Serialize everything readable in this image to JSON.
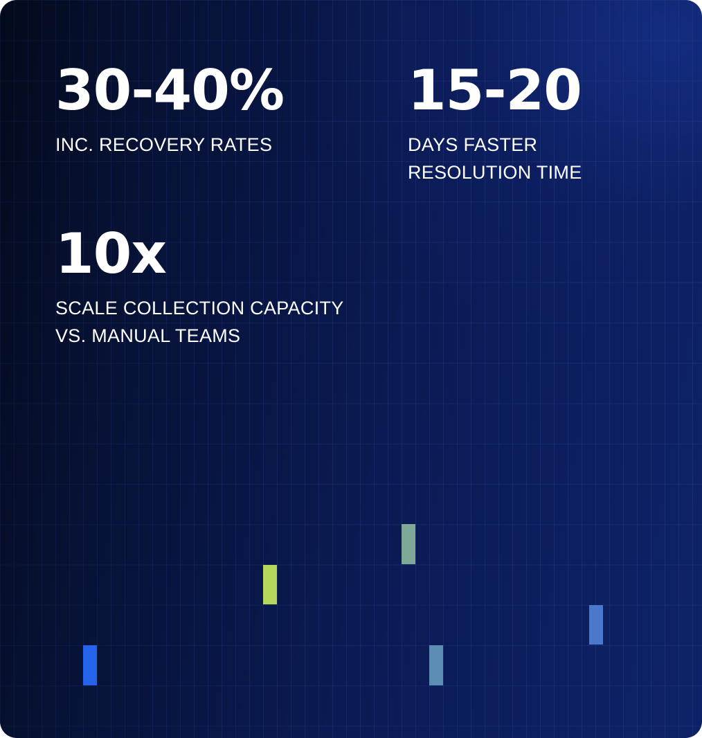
{
  "stats": [
    {
      "value": "30-40%",
      "label_lines": [
        "INC. RECOVERY RATES"
      ]
    },
    {
      "value": "15-20",
      "label_lines": [
        "DAYS FASTER",
        "RESOLUTION TIME"
      ]
    },
    {
      "value": "10x",
      "label_lines": [
        "SCALE COLLECTION CAPACITY",
        "VS. MANUAL TEAMS"
      ]
    }
  ],
  "colors": {
    "text": "#ffffff",
    "grid_line": "#2a3f86",
    "block_blue": "#2563eb",
    "block_lime": "#b5d75b",
    "block_sage": "#7fa896",
    "block_steel": "#5b8db5",
    "block_periwinkle": "#4a78cc"
  }
}
